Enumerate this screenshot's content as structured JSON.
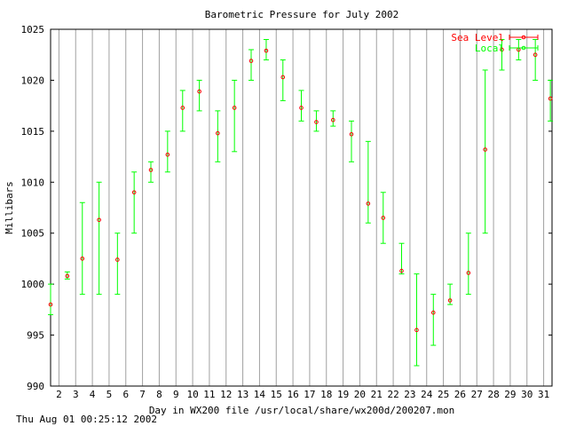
{
  "chart_data": {
    "type": "scatter",
    "title": "Barometric Pressure for July 2002",
    "xlabel": "Day in WX200 file /usr/local/share/wx200d/200207.mon",
    "ylabel": "Millibars",
    "footer": "Thu Aug 01 00:25:12 2002",
    "xlim": [
      1.5,
      31.5
    ],
    "ylim": [
      990,
      1025
    ],
    "x_ticks": [
      2,
      3,
      4,
      5,
      6,
      7,
      8,
      9,
      10,
      11,
      12,
      13,
      14,
      15,
      16,
      17,
      18,
      19,
      20,
      21,
      22,
      23,
      24,
      25,
      26,
      27,
      28,
      29,
      30,
      31
    ],
    "y_ticks": [
      990,
      995,
      1000,
      1005,
      1010,
      1015,
      1020,
      1025
    ],
    "grid": "vertical",
    "legend_position": "top-right",
    "series": [
      {
        "name": "Sea Level",
        "color": "#ff0000",
        "x": [
          1.5,
          2.5,
          3.4,
          4.4,
          5.5,
          6.5,
          7.5,
          8.5,
          9.4,
          10.4,
          11.5,
          12.5,
          13.5,
          14.4,
          15.4,
          16.5,
          17.4,
          18.4,
          19.5,
          20.5,
          21.4,
          22.5,
          23.4,
          24.4,
          25.4,
          26.5,
          27.5,
          28.5,
          29.5,
          30.5,
          31.4
        ],
        "values": [
          998,
          1000.8,
          1002.5,
          1006.3,
          1002.4,
          1009,
          1011.2,
          1012.7,
          1017.3,
          1018.9,
          1014.8,
          1017.3,
          1021.9,
          1022.9,
          1020.3,
          1017.3,
          1015.9,
          1016.1,
          1014.7,
          1007.9,
          1006.5,
          1001.3,
          995.5,
          997.2,
          998.4,
          1001.1,
          1013.2,
          1023,
          1023,
          1022.5,
          1018.2
        ]
      },
      {
        "name": "Local",
        "color": "#00ff00",
        "x": [
          1.5,
          2.5,
          3.4,
          4.4,
          5.5,
          6.5,
          7.5,
          8.5,
          9.4,
          10.4,
          11.5,
          12.5,
          13.5,
          14.4,
          15.4,
          16.5,
          17.4,
          18.4,
          19.5,
          20.5,
          21.4,
          22.5,
          23.4,
          24.4,
          25.4,
          26.5,
          27.5,
          28.5,
          29.5,
          30.5,
          31.4
        ],
        "values": [
          998,
          1000.8,
          1002.5,
          1006.3,
          1002.4,
          1009,
          1011.2,
          1012.7,
          1017.3,
          1018.9,
          1014.8,
          1017.3,
          1021.9,
          1022.9,
          1020.3,
          1017.3,
          1015.9,
          1016.1,
          1014.7,
          1007.9,
          1006.5,
          1001.3,
          995.5,
          997.2,
          998.4,
          1001.1,
          1013.2,
          1023,
          1023,
          1022.5,
          1018.2
        ],
        "low": [
          997,
          1000.5,
          999,
          999,
          999,
          1005,
          1010,
          1011,
          1015,
          1017,
          1012,
          1013,
          1020,
          1022,
          1018,
          1016,
          1015,
          1015.5,
          1012,
          1006,
          1004,
          1001,
          992,
          994,
          998,
          999,
          1005,
          1021,
          1022,
          1020,
          1016
        ],
        "high": [
          1000,
          1001.2,
          1008,
          1010,
          1005,
          1011,
          1012,
          1015,
          1019,
          1020,
          1017,
          1020,
          1023,
          1024,
          1022,
          1019,
          1017,
          1017,
          1016,
          1014,
          1009,
          1004,
          1001,
          999,
          1000,
          1005,
          1021,
          1024,
          1024,
          1024,
          1020
        ]
      }
    ]
  }
}
